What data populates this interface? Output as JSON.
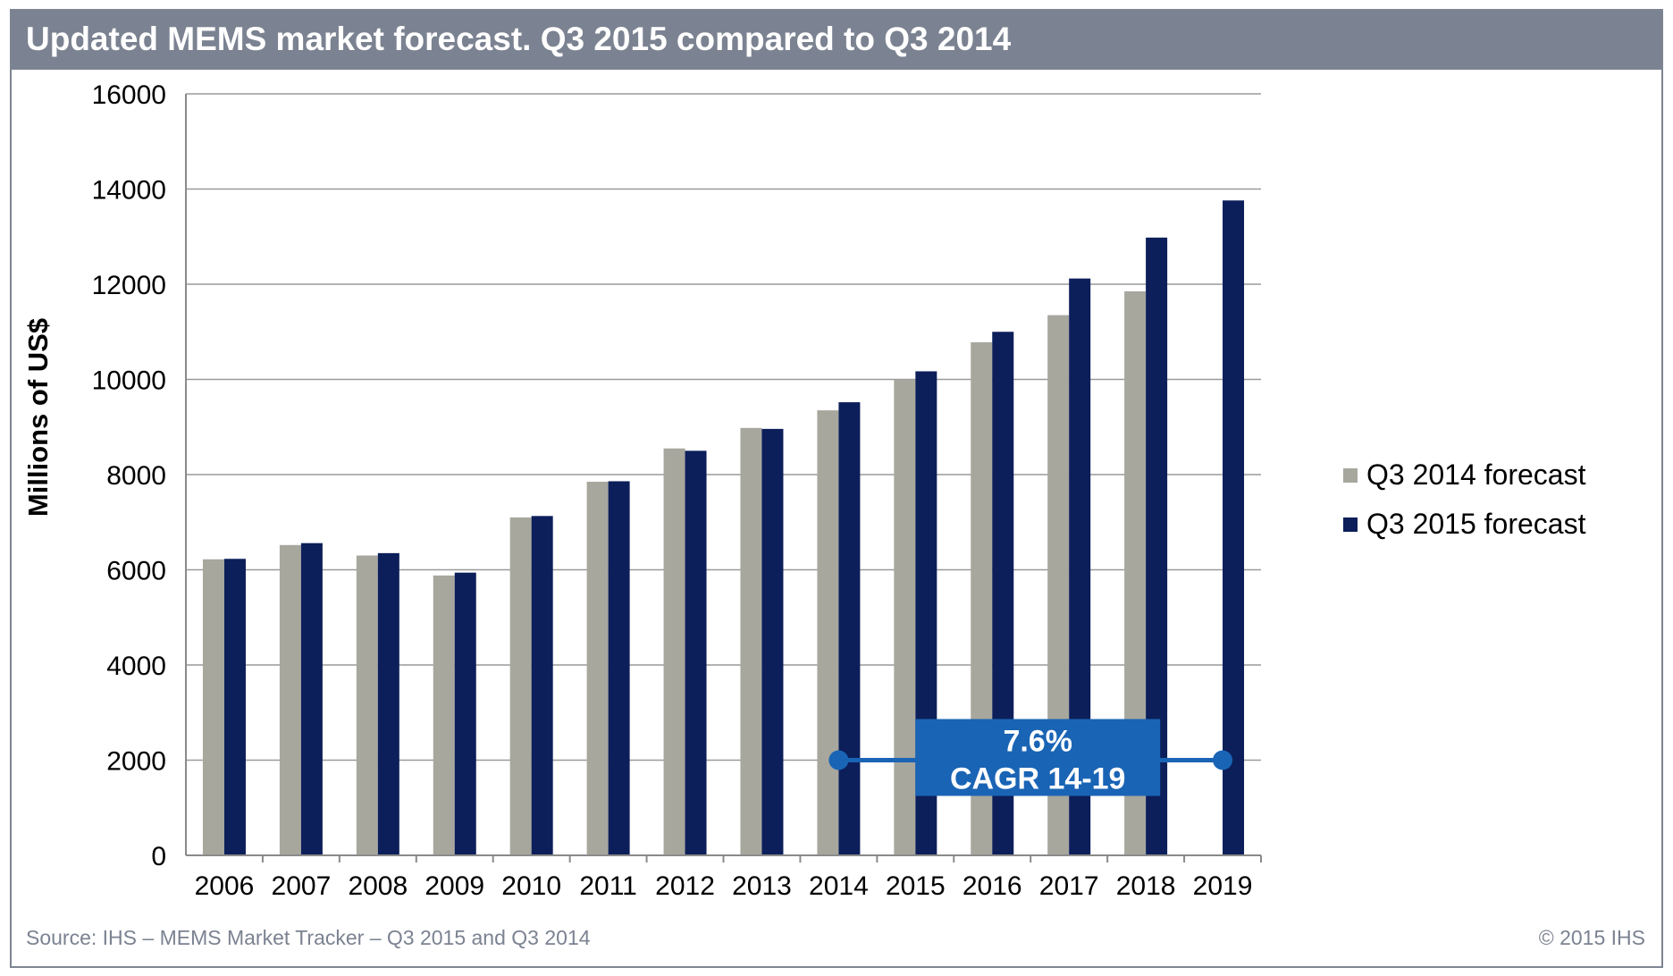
{
  "title": "Updated MEMS market forecast. Q3 2015 compared to Q3 2014",
  "source": "Source: IHS – MEMS Market Tracker – Q3 2015 and Q3 2014",
  "copyright": "© 2015 IHS",
  "colors": {
    "q3_2014": "#a7a79e",
    "q3_2015": "#0c1f5a",
    "cagr_box": "#1a64b5",
    "cagr_line": "#1a64b5",
    "gridline": "#9a9a9a",
    "title_bar": "#7b8291"
  },
  "cagr_callout": {
    "line1": "7.6%",
    "line2": "CAGR 14-19",
    "from_year": "2014",
    "to_year": "2019",
    "value": 2000
  },
  "chart_data": {
    "type": "bar",
    "title": "Updated MEMS market forecast. Q3 2015 compared to Q3 2014",
    "xlabel": "",
    "ylabel": "Millions of US$",
    "ylim": [
      0,
      16000
    ],
    "yticks": [
      0,
      2000,
      4000,
      6000,
      8000,
      10000,
      12000,
      14000,
      16000
    ],
    "grid": true,
    "legend_position": "right",
    "categories": [
      "2006",
      "2007",
      "2008",
      "2009",
      "2010",
      "2011",
      "2012",
      "2013",
      "2014",
      "2015",
      "2016",
      "2017",
      "2018",
      "2019"
    ],
    "series": [
      {
        "name": "Q3 2014 forecast",
        "values": [
          6220,
          6520,
          6300,
          5880,
          7100,
          7850,
          8550,
          8980,
          9350,
          10000,
          10780,
          11350,
          11850,
          null
        ]
      },
      {
        "name": "Q3 2015 forecast",
        "values": [
          6230,
          6560,
          6350,
          5940,
          7130,
          7860,
          8500,
          8960,
          9520,
          10170,
          11000,
          12120,
          12980,
          13760
        ]
      }
    ]
  }
}
